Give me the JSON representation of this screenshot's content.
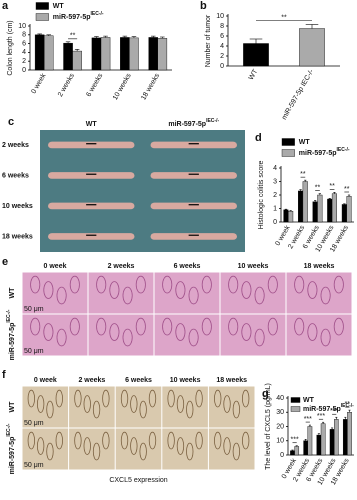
{
  "chart_data": [
    {
      "type": "bar",
      "panel": "a",
      "y_label": "Colon length (cm)",
      "categories": [
        "0 week",
        "2 weeks",
        "6 weeks",
        "10 weeks",
        "18 weeks"
      ],
      "series": [
        {
          "name": "WT",
          "color": "#000000",
          "values": [
            8.0,
            6.1,
            7.3,
            7.4,
            7.4
          ],
          "errors": [
            0.2,
            0.3,
            0.3,
            0.3,
            0.3
          ]
        },
        {
          "name": "miR-597-5p",
          "name_sup": "IEC-/-",
          "color": "#aaaaaa",
          "values": [
            7.8,
            4.3,
            7.4,
            7.3,
            7.2
          ],
          "errors": [
            0.2,
            0.4,
            0.3,
            0.3,
            0.3
          ]
        }
      ],
      "ylim": [
        0,
        10
      ],
      "yticks": [
        0,
        2,
        4,
        6,
        8,
        10
      ],
      "annotations": [
        {
          "text": "**",
          "at": "2 weeks"
        }
      ]
    },
    {
      "type": "bar",
      "panel": "b",
      "y_label": "Number of tumor",
      "categories": [
        "WT",
        "miR-597-5p IEC-/-"
      ],
      "series": [
        {
          "colors": [
            "#000000",
            "#aaaaaa"
          ],
          "values": [
            4.5,
            7.5
          ],
          "errors": [
            0.9,
            0.8
          ]
        }
      ],
      "ylim": [
        0,
        10
      ],
      "yticks": [
        0,
        2,
        4,
        6,
        8,
        10
      ],
      "annotations": [
        {
          "text": "**"
        }
      ]
    },
    {
      "type": "bar",
      "panel": "d",
      "y_label": "Histologic colitis score",
      "categories": [
        "0 week",
        "2 weeks",
        "6 weeks",
        "10 weeks",
        "18 weeks"
      ],
      "series": [
        {
          "name": "WT",
          "color": "#000000",
          "values": [
            0.9,
            2.3,
            1.5,
            1.7,
            1.3
          ],
          "errors": [
            0.05,
            0.1,
            0.1,
            0.05,
            0.05
          ]
        },
        {
          "name": "miR-597-5p",
          "name_sup": "IEC-/-",
          "color": "#aaaaaa",
          "values": [
            0.8,
            3.0,
            2.0,
            2.1,
            1.9
          ],
          "errors": [
            0.05,
            0.1,
            0.1,
            0.1,
            0.1
          ]
        }
      ],
      "ylim": [
        0,
        4
      ],
      "yticks": [
        0,
        1,
        2,
        3,
        4
      ],
      "annotations": [
        {
          "text": "**",
          "at": "2 weeks"
        },
        {
          "text": "**",
          "at": "6 weeks"
        },
        {
          "text": "**",
          "at": "10 weeks"
        },
        {
          "text": "**",
          "at": "18 weeks"
        }
      ]
    },
    {
      "type": "bar",
      "panel": "g",
      "y_label": "The level of CXCL5 (pg/mL)",
      "categories": [
        "0 week",
        "2 weeks",
        "6 weeks",
        "10 weeks",
        "18 weeks"
      ],
      "series": [
        {
          "name": "WT",
          "color": "#000000",
          "values": [
            3,
            10,
            14,
            18,
            25
          ],
          "errors": [
            0.5,
            1,
            1,
            1,
            1.5
          ]
        },
        {
          "name": "miR-597-5p",
          "name_sup": "IEC-/-",
          "color": "#aaaaaa",
          "values": [
            6,
            20,
            22,
            25,
            30
          ],
          "errors": [
            0.5,
            1,
            1,
            1.5,
            1.5
          ]
        }
      ],
      "ylim": [
        0,
        40
      ],
      "yticks": [
        0,
        10,
        20,
        30,
        40
      ],
      "annotations": [
        {
          "text": "***",
          "at": "0 week"
        },
        {
          "text": "***",
          "at": "2 weeks"
        },
        {
          "text": "***",
          "at": "6 weeks"
        },
        {
          "text": "***",
          "at": "10 weeks"
        },
        {
          "text": "**",
          "at": "18 weeks"
        }
      ]
    }
  ],
  "photo_panels": [
    {
      "panel": "c",
      "columns": [
        {
          "text": "WT"
        },
        {
          "text": "miR-597-5p",
          "sup": "IEC-/-"
        }
      ],
      "rows": [
        {
          "text": "2 weeks"
        },
        {
          "text": "6 weeks"
        },
        {
          "text": "10 weeks"
        },
        {
          "text": "18 weeks"
        }
      ]
    },
    {
      "panel": "e",
      "columns": [
        {
          "text": "0 week"
        },
        {
          "text": "2 weeks"
        },
        {
          "text": "6 weeks"
        },
        {
          "text": "10 weeks"
        },
        {
          "text": "18 weeks"
        }
      ],
      "rows": [
        {
          "text": "WT"
        },
        {
          "text": "miR-597-5p",
          "sup": "IEC-/-"
        }
      ],
      "scale_bar": "50 μm"
    },
    {
      "panel": "f",
      "columns": [
        {
          "text": "0 week"
        },
        {
          "text": "2 weeks"
        },
        {
          "text": "6 weeks"
        },
        {
          "text": "10 weeks"
        },
        {
          "text": "18 weeks"
        }
      ],
      "rows": [
        {
          "text": "WT"
        },
        {
          "text": "miR-597-5p",
          "sup": "IEC-/-"
        }
      ],
      "scale_bar": "50 μm",
      "caption": "CXCL5 expression"
    }
  ]
}
